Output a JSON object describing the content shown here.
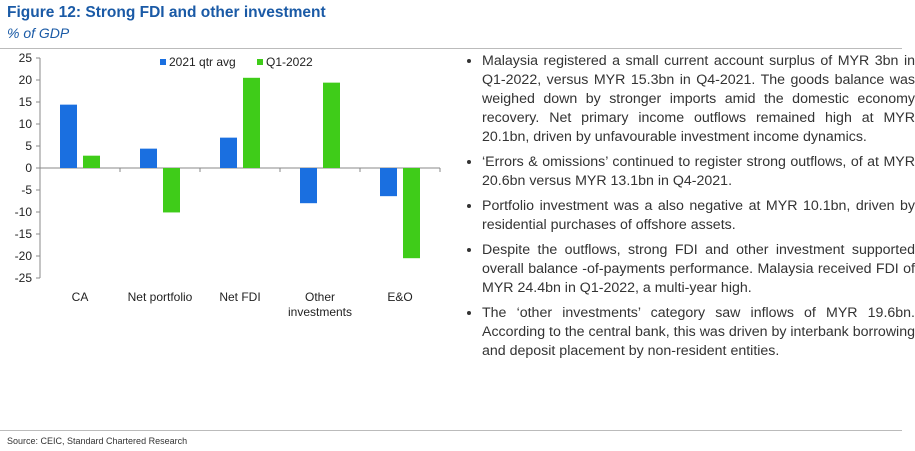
{
  "title": "Figure 12: Strong FDI and other investment",
  "subtitle": "% of GDP",
  "chart_data": {
    "type": "bar",
    "categories": [
      "CA",
      "Net portfolio",
      "Net FDI",
      "Other investments",
      "E&O"
    ],
    "category_lines": [
      [
        "CA"
      ],
      [
        "Net portfolio"
      ],
      [
        "Net FDI"
      ],
      [
        "Other",
        "investments"
      ],
      [
        "E&O"
      ]
    ],
    "series": [
      {
        "name": "2021 qtr avg",
        "color": "#1a6fe0",
        "values": [
          14.4,
          4.4,
          6.9,
          -8.0,
          -6.4
        ]
      },
      {
        "name": "Q1-2022",
        "color": "#3fcc19",
        "values": [
          2.8,
          -10.1,
          20.5,
          19.4,
          -20.5
        ]
      }
    ],
    "ylim": [
      -25,
      25
    ],
    "yticks": [
      "25",
      "20",
      "15",
      "10",
      "5",
      "0",
      "-5",
      "-10",
      "-15",
      "-20",
      "-25"
    ],
    "legend": "top-center",
    "grid": false
  },
  "bullets": [
    "Malaysia registered a small current account surplus of MYR 3bn in Q1-2022, versus MYR 15.3bn in Q4-2021. The goods balance was weighed down by stronger imports amid the domestic economy recovery. Net primary income outflows remained high at MYR 20.1bn, driven by unfavourable investment income dynamics.",
    "‘Errors & omissions’ continued to register strong outflows, of at MYR 20.6bn versus MYR 13.1bn in Q4-2021.",
    "Portfolio investment was a also negative at MYR 10.1bn, driven by residential purchases of offshore assets.",
    "Despite the outflows, strong FDI and other investment supported overall balance -of-payments performance. Malaysia received FDI of MYR 24.4bn in Q1-2022, a multi-year high.",
    "The ‘other investments’ category saw inflows of MYR 19.6bn. According to the central bank, this was driven by interbank borrowing and deposit placement by non-resident entities."
  ],
  "source": "Source: CEIC, Standard Chartered Research"
}
